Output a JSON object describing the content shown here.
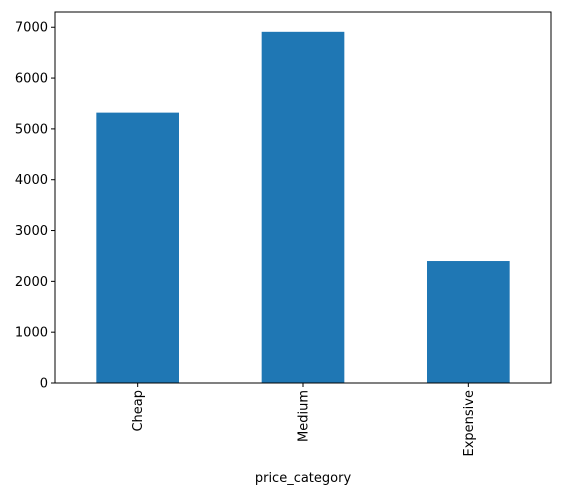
{
  "chart_data": {
    "type": "bar",
    "categories": [
      "Cheap",
      "Medium",
      "Expensive"
    ],
    "values": [
      5320,
      6910,
      2400
    ],
    "title": "",
    "xlabel": "price_category",
    "ylabel": "",
    "ylim": [
      0,
      7300
    ],
    "yticks": [
      0,
      1000,
      2000,
      3000,
      4000,
      5000,
      6000,
      7000
    ],
    "grid": false,
    "legend": "none",
    "bar_color": "#1f77b4"
  }
}
